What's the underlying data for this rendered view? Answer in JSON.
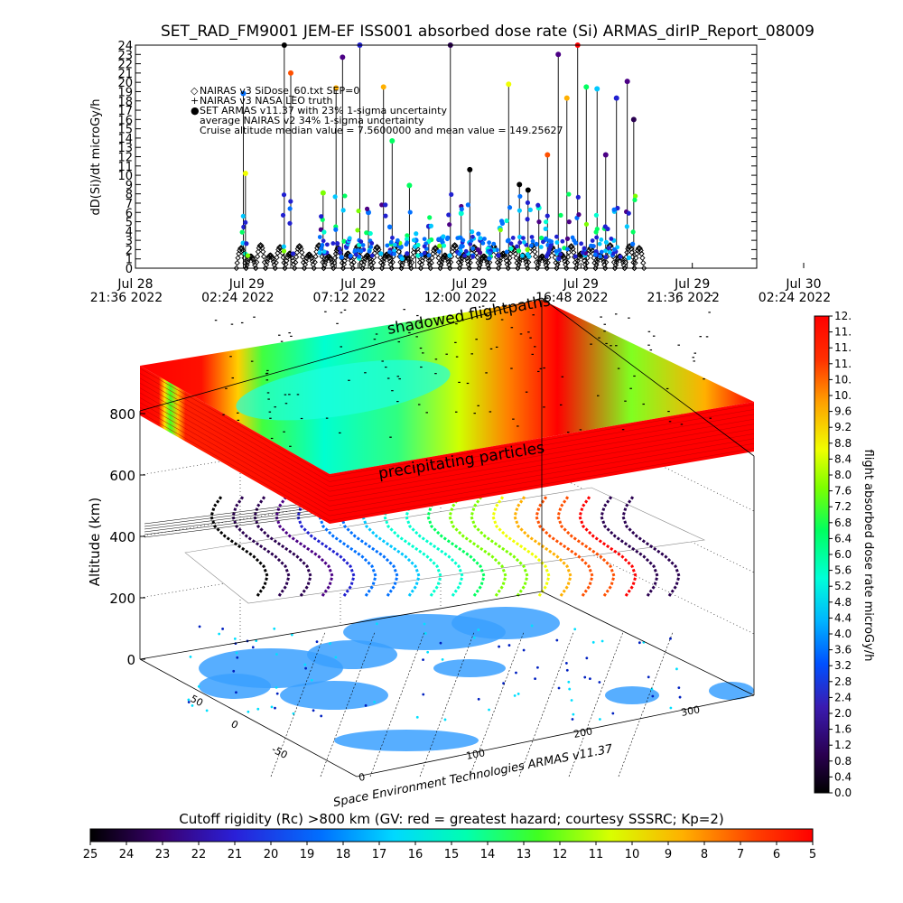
{
  "title": "SET_RAD_FM9001  JEM-EF ISS001 absorbed dose rate (Si) ARMAS_dirIP_Report_08009",
  "chart_data": [
    {
      "type": "scatter",
      "ylabel": "dD(Si)/dt microGy/h",
      "ylim": [
        0,
        24
      ],
      "yticks": [
        "0",
        "1",
        "2",
        "3",
        "4",
        "5",
        "6",
        "7",
        "8",
        "9",
        "10",
        "11",
        "12",
        "13",
        "14",
        "15",
        "16",
        "17",
        "18",
        "19",
        "20",
        "21",
        "22",
        "23",
        "24"
      ],
      "xticks": [
        {
          "line1": "Jul 28",
          "line2": "21:36 2022"
        },
        {
          "line1": "Jul 29",
          "line2": "02:24 2022"
        },
        {
          "line1": "Jul 29",
          "line2": "07:12 2022"
        },
        {
          "line1": "Jul 29",
          "line2": "12:00 2022"
        },
        {
          "line1": "Jul 29",
          "line2": "16:48 2022"
        },
        {
          "line1": "Jul 29",
          "line2": "21:36 2022"
        },
        {
          "line1": "Jul 30",
          "line2": "02:24 2022"
        }
      ],
      "xlim_hours": [
        0,
        28.8
      ],
      "legend": [
        {
          "symbol": "◇",
          "text": "NAIRAS v3 SiDose_60.txt SEP=0"
        },
        {
          "symbol": "+",
          "text": "NAIRAS v3 NASA LEO truth"
        },
        {
          "symbol": "●",
          "text": "SET ARMAS v11.37 with 23% 1-sigma uncertainty"
        },
        {
          "symbol": "",
          "text": "average NAIRAS v2 34% 1-sigma uncertainty"
        },
        {
          "symbol": "",
          "text": "Cruise altitude median value = 7.5600000 and mean value = 149.25627"
        }
      ],
      "series": [
        {
          "marker": "diamond-outline",
          "hours": [
            4.9,
            5.35,
            5.8,
            6.25,
            6.7,
            7.15,
            7.6,
            8.05,
            8.5,
            8.95,
            9.4,
            9.85,
            10.3,
            10.75,
            11.2,
            11.65,
            12.1,
            12.55,
            13.0,
            13.45,
            13.9,
            14.35,
            14.8,
            15.25,
            15.7,
            16.15,
            16.6,
            17.05,
            17.5,
            17.95,
            18.4,
            18.85,
            19.3,
            19.75,
            20.2,
            20.65,
            21.1,
            21.55,
            22.0,
            22.45,
            22.9,
            23.35
          ],
          "peak": [
            2.2,
            1.3,
            2.5,
            1.4,
            2.3,
            1.6,
            2.4,
            1.5,
            2.5,
            1.3,
            2.2,
            1.6,
            2.4,
            1.4,
            2.3,
            1.5,
            2.5,
            1.3,
            2.4,
            1.6,
            2.2,
            1.4,
            2.5,
            1.5,
            2.3,
            1.3,
            2.4,
            1.6,
            2.2,
            1.4,
            2.5,
            1.3,
            2.3,
            1.5,
            2.4,
            1.6,
            2.2,
            1.4,
            2.5,
            1.3,
            2.4,
            2.2
          ]
        },
        {
          "marker": "colored-dot",
          "hours": [
            5.0,
            5.1,
            6.9,
            7.2,
            8.7,
            9.3,
            9.6,
            10.4,
            10.8,
            11.5,
            11.9,
            12.3,
            12.7,
            13.0,
            13.6,
            14.2,
            14.6,
            15.1,
            15.5,
            16.0,
            16.4,
            16.9,
            17.3,
            17.8,
            18.2,
            18.7,
            19.1,
            19.6,
            20.0,
            20.5,
            20.9,
            21.4,
            21.8,
            22.3,
            22.8,
            23.1
          ],
          "values": [
            18.8,
            10.2,
            24.0,
            21.0,
            8.1,
            19.4,
            22.7,
            24.0,
            6.0,
            19.5,
            13.7,
            2.3,
            8.9,
            3.0,
            4.5,
            3.2,
            24.0,
            5.9,
            10.6,
            3.0,
            2.2,
            4.3,
            19.8,
            9.0,
            8.4,
            6.5,
            12.2,
            23.0,
            18.3,
            24.0,
            19.5,
            19.3,
            12.2,
            18.3,
            20.1,
            16.0
          ],
          "colorscale_values": [
            4.0,
            9.0,
            0.0,
            11.0,
            8.0,
            9.5,
            2.0,
            3.2,
            4.4,
            9.6,
            6.8,
            3.6,
            7.2,
            4.4,
            3.2,
            4.4,
            0.8,
            6.4,
            0.0,
            3.2,
            4.0,
            5.2,
            9.2,
            0.0,
            0.0,
            6.0,
            11.0,
            2.0,
            9.6,
            11.5,
            7.2,
            5.2,
            2.0,
            3.2,
            2.0,
            0.8
          ]
        }
      ]
    },
    {
      "type": "heatmap",
      "ylabel": "Altitude (km)",
      "zticks": [
        "0",
        "200",
        "400",
        "600",
        "800"
      ],
      "lon_ticks": [
        "0",
        "100",
        "200",
        "300"
      ],
      "lat_ticks": [
        "-50",
        "0",
        "50"
      ],
      "upper_layer_label": "shadowed flightpaths",
      "lower_layer_label": "precipitating particles",
      "credit": "Space Environment Technologies ARMAS v11.37"
    },
    {
      "type": "colorbar",
      "orientation": "vertical",
      "label": "flight absorbed dose rate microGy/h",
      "ticks": [
        "0.0",
        "0.4",
        "0.8",
        "1.2",
        "1.6",
        "2.0",
        "2.4",
        "2.8",
        "3.2",
        "3.6",
        "4.0",
        "4.4",
        "4.8",
        "5.2",
        "5.6",
        "6.0",
        "6.4",
        "6.8",
        "7.2",
        "7.6",
        "8.0",
        "8.4",
        "8.8",
        "9.2",
        "9.6",
        "10.",
        "10.",
        "11.",
        "11.",
        "11.",
        "12."
      ],
      "range": [
        0,
        12
      ]
    },
    {
      "type": "colorbar",
      "orientation": "horizontal",
      "label": "Cutoff rigidity (Rc) >800 km (GV: red = greatest hazard; courtesy SSSRC; Kp=2)",
      "ticks": [
        "25",
        "24",
        "23",
        "22",
        "21",
        "20",
        "19",
        "18",
        "17",
        "16",
        "15",
        "14",
        "13",
        "12",
        "11",
        "10",
        "9",
        "8",
        "7",
        "6",
        "5"
      ],
      "range": [
        25,
        5
      ]
    }
  ],
  "colors": {
    "scale": [
      "#000000",
      "#2a0050",
      "#4b0085",
      "#2020d0",
      "#0070ff",
      "#00c8ff",
      "#00ffd0",
      "#00ff60",
      "#7cff00",
      "#f0ff00",
      "#ffb000",
      "#ff5000",
      "#ff0000"
    ],
    "axis": "#000000",
    "background": "#ffffff"
  }
}
